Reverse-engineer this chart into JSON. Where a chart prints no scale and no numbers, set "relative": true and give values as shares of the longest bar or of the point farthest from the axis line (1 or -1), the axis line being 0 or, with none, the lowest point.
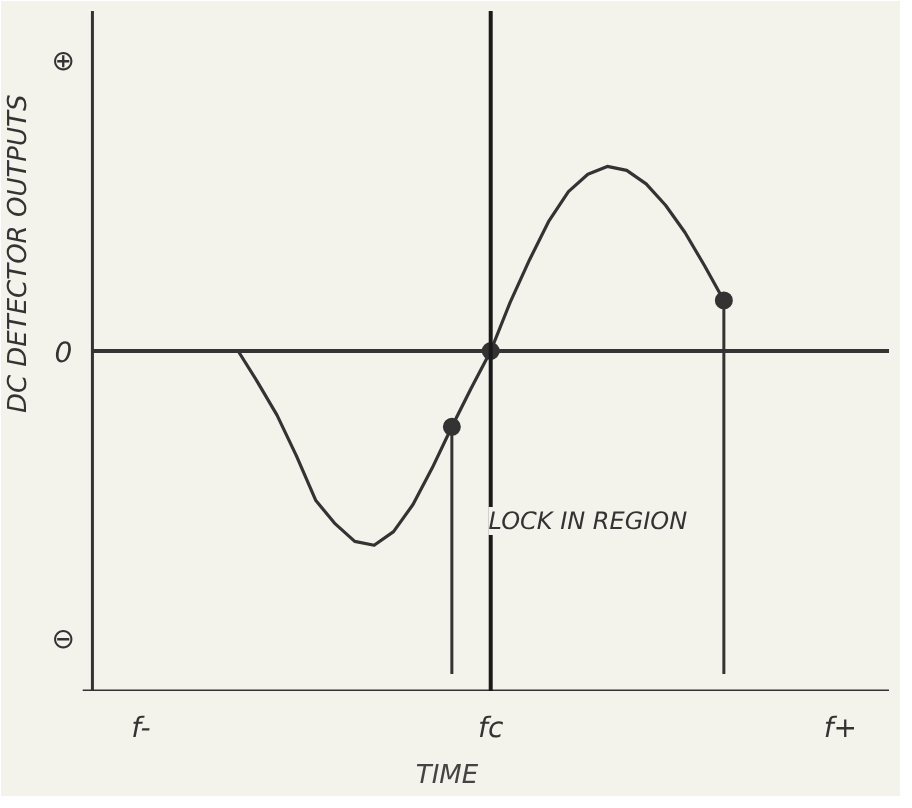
{
  "chart_data": {
    "type": "line",
    "relative": true,
    "xlabel": "TIME",
    "ylabel": "DC DETECTOR OUTPUTS",
    "categories": [
      null,
      null,
      "f-",
      null,
      null,
      null,
      null,
      null,
      null,
      null,
      null,
      null,
      null,
      null,
      null,
      null,
      null,
      null,
      null,
      null,
      "fc",
      null,
      null,
      null,
      null,
      null,
      null,
      null,
      null,
      null,
      null,
      null,
      null,
      null,
      null,
      null,
      null,
      null,
      "f+",
      null,
      null
    ],
    "series": [
      {
        "color": "#333333",
        "line_style": "solid",
        "values": [
          null,
          null,
          null,
          null,
          null,
          null,
          null,
          0,
          -0.16,
          -0.33,
          -0.54,
          -0.77,
          -0.89,
          -0.98,
          -1,
          -0.93,
          -0.79,
          -0.6,
          -0.39,
          -0.19,
          0,
          0.25,
          0.47,
          0.67,
          0.82,
          0.91,
          0.95,
          0.93,
          0.86,
          0.75,
          0.61,
          0.44,
          0.26,
          null,
          null,
          null,
          null,
          null,
          null,
          null,
          null
        ]
      },
      {
        "type": "scatter",
        "color": "#333333",
        "marker": "circle",
        "values": [
          null,
          null,
          null,
          null,
          null,
          null,
          null,
          null,
          null,
          null,
          null,
          null,
          null,
          null,
          null,
          null,
          null,
          null,
          -0.39,
          null,
          0,
          null,
          null,
          null,
          null,
          null,
          null,
          null,
          null,
          null,
          null,
          null,
          0.26,
          null,
          null,
          null,
          null,
          null,
          null,
          null,
          null
        ]
      }
    ],
    "ref_lines": [
      {
        "axis": "y",
        "value": 0,
        "color": "#333333"
      },
      {
        "axis": "x",
        "value": "fc",
        "color": "#1a1a1a"
      }
    ],
    "annotations": [
      "⊕",
      "0",
      "⊖",
      "LOCK IN REGION"
    ],
    "grid": false
  }
}
